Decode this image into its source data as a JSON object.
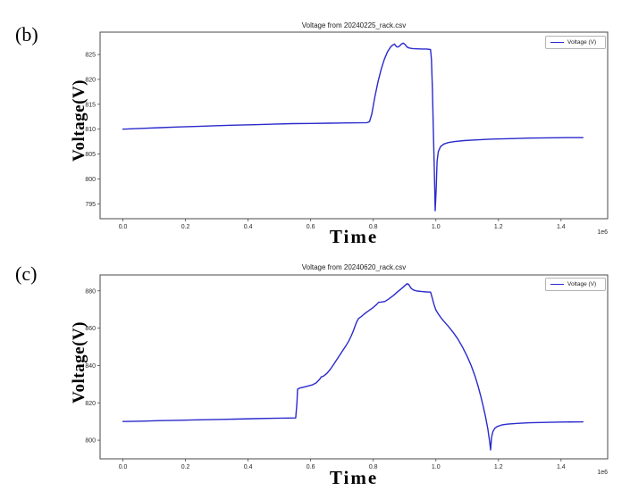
{
  "chart_data": [
    {
      "type": "line",
      "panel_label": "(b)",
      "title": "Voltage from 20240225_rack.csv",
      "xlabel": "Time",
      "ylabel": "Voltage(V)",
      "legend": [
        "Voltage (V)"
      ],
      "legend_position": "upper right",
      "line_color": "#2a2acd",
      "x_offset_label": "1e6",
      "xlim": [
        -73000,
        1549000
      ],
      "ylim": [
        792,
        829.5
      ],
      "xtick_values": [
        0,
        200000,
        400000,
        600000,
        800000,
        1000000,
        1200000,
        1400000
      ],
      "xtick_labels": [
        "0.0",
        "0.2",
        "0.4",
        "0.6",
        "0.8",
        "1.0",
        "1.2",
        "1.4"
      ],
      "ytick_values": [
        795,
        800,
        805,
        810,
        815,
        820,
        825
      ],
      "ytick_labels": [
        "795",
        "800",
        "805",
        "810",
        "815",
        "820",
        "825"
      ],
      "grid": false,
      "series": [
        {
          "name": "Voltage (V)",
          "x": [
            0,
            60000,
            120000,
            180000,
            240000,
            300000,
            360000,
            420000,
            480000,
            540000,
            600000,
            660000,
            720000,
            780000,
            788000,
            795000,
            805000,
            815000,
            825000,
            835000,
            845000,
            855000,
            862000,
            868000,
            874000,
            878000,
            884000,
            890000,
            896000,
            902000,
            908000,
            915000,
            925000,
            940000,
            955000,
            970000,
            983000,
            986000,
            989000,
            992000,
            995000,
            998000,
            1001000,
            1004000,
            1008000,
            1015000,
            1025000,
            1040000,
            1060000,
            1090000,
            1130000,
            1180000,
            1240000,
            1300000,
            1360000,
            1420000,
            1470000
          ],
          "y": [
            810.0,
            810.15,
            810.3,
            810.45,
            810.55,
            810.7,
            810.8,
            810.9,
            811.0,
            811.1,
            811.15,
            811.2,
            811.25,
            811.3,
            811.5,
            813.0,
            816.5,
            819.5,
            822.0,
            824.0,
            825.5,
            826.5,
            826.9,
            827.1,
            826.6,
            826.5,
            826.7,
            827.1,
            827.3,
            827.0,
            826.5,
            826.3,
            826.2,
            826.15,
            826.1,
            826.1,
            826.0,
            824.0,
            818.0,
            810.0,
            802.0,
            793.6,
            798.0,
            803.5,
            805.5,
            806.5,
            807.0,
            807.3,
            807.5,
            807.7,
            807.85,
            808.0,
            808.1,
            808.2,
            808.25,
            808.3,
            808.3
          ]
        }
      ]
    },
    {
      "type": "line",
      "panel_label": "(c)",
      "title": "Voltage from 20240620_rack.csv",
      "xlabel": "Time",
      "ylabel": "Voltage(V)",
      "legend": [
        "Voltage (V)"
      ],
      "legend_position": "upper right",
      "line_color": "#2a2acd",
      "x_offset_label": "1e6",
      "xlim": [
        -73000,
        1549000
      ],
      "ylim": [
        790,
        888.5
      ],
      "xtick_values": [
        0,
        200000,
        400000,
        600000,
        800000,
        1000000,
        1200000,
        1400000
      ],
      "xtick_labels": [
        "0.0",
        "0.2",
        "0.4",
        "0.6",
        "0.8",
        "1.0",
        "1.2",
        "1.4"
      ],
      "ytick_values": [
        800,
        820,
        840,
        860,
        880
      ],
      "ytick_labels": [
        "800",
        "820",
        "840",
        "860",
        "880"
      ],
      "grid": false,
      "series": [
        {
          "name": "Voltage (V)",
          "x": [
            0,
            60000,
            120000,
            180000,
            240000,
            300000,
            360000,
            420000,
            480000,
            530000,
            552000,
            556000,
            558000,
            565000,
            575000,
            590000,
            605000,
            618000,
            628000,
            634000,
            642000,
            652000,
            662000,
            672000,
            682000,
            692000,
            702000,
            712000,
            722000,
            730000,
            737000,
            742000,
            747000,
            753000,
            760000,
            770000,
            780000,
            790000,
            800000,
            810000,
            817000,
            827000,
            837000,
            850000,
            865000,
            880000,
            892000,
            902000,
            908000,
            913000,
            916000,
            922000,
            930000,
            940000,
            955000,
            970000,
            983000,
            988000,
            994000,
            1000000,
            1008000,
            1016000,
            1025000,
            1040000,
            1055000,
            1070000,
            1085000,
            1100000,
            1113000,
            1125000,
            1135000,
            1143000,
            1151000,
            1159000,
            1166000,
            1172000,
            1175000,
            1178000,
            1182000,
            1188000,
            1196000,
            1210000,
            1230000,
            1260000,
            1300000,
            1350000,
            1400000,
            1470000
          ],
          "y": [
            810.0,
            810.2,
            810.45,
            810.65,
            810.9,
            811.1,
            811.3,
            811.5,
            811.7,
            811.85,
            811.9,
            820.0,
            827.3,
            827.9,
            828.3,
            828.9,
            829.6,
            830.8,
            832.5,
            833.9,
            834.4,
            835.8,
            837.8,
            840.2,
            842.8,
            845.3,
            847.9,
            850.4,
            853.2,
            856.0,
            858.8,
            861.2,
            863.4,
            865.2,
            866.0,
            867.4,
            868.7,
            869.9,
            871.1,
            872.6,
            873.8,
            874.0,
            874.3,
            875.7,
            877.6,
            879.8,
            881.4,
            882.9,
            883.8,
            883.5,
            882.6,
            881.2,
            880.3,
            879.9,
            879.6,
            879.4,
            879.3,
            876.5,
            872.8,
            869.8,
            867.6,
            865.6,
            863.8,
            860.9,
            857.8,
            854.2,
            849.9,
            844.9,
            839.9,
            834.4,
            828.9,
            823.9,
            818.4,
            812.4,
            806.0,
            799.0,
            794.8,
            801.5,
            804.5,
            806.3,
            807.3,
            808.1,
            808.6,
            809.0,
            809.3,
            809.5,
            809.7,
            809.8
          ]
        }
      ]
    }
  ]
}
